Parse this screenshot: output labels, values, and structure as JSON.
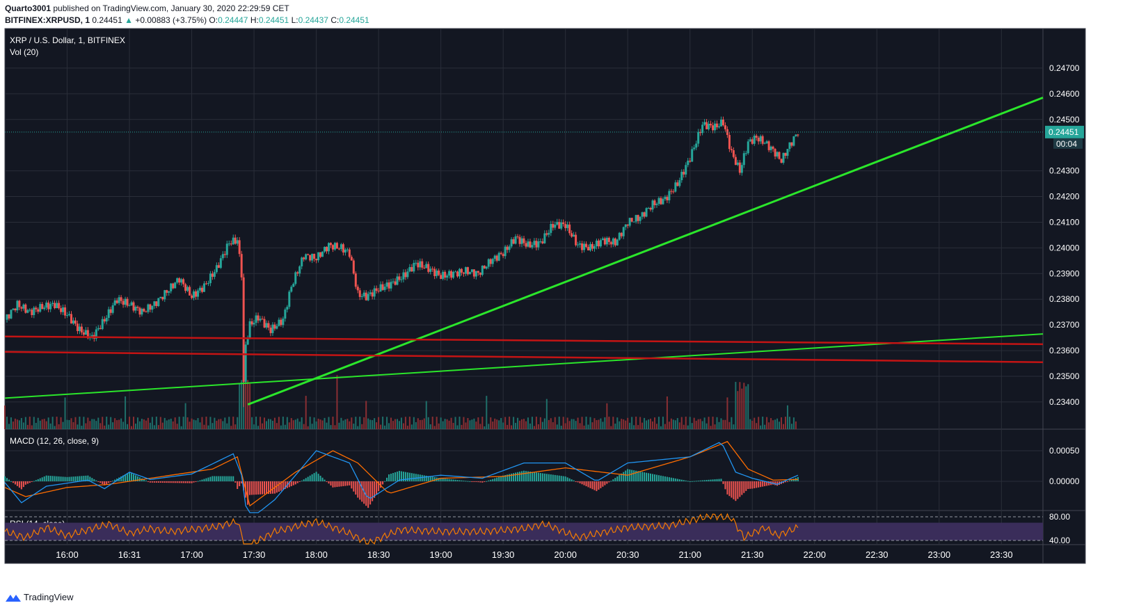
{
  "header": {
    "author": "Quarto3001",
    "published_text": "published on TradingView.com, January 30, 2020 22:29:59 CET",
    "symbol": "BITFINEX:XRPUSD, 1",
    "last": "0.24451",
    "change": "+0.00883 (+3.75%)",
    "o_label": "O:",
    "o_value": "0.24447",
    "h_label": "H:",
    "h_value": "0.24451",
    "l_label": "L:",
    "l_value": "0.24437",
    "c_label": "C:",
    "c_value": "0.24451"
  },
  "footer": {
    "brand": "TradingView"
  },
  "colors": {
    "background": "#131722",
    "grid": "#2a2e39",
    "axis_text": "#d1d4dc",
    "up": "#26a69a",
    "down": "#ef5350",
    "trend_green": "#2be62b",
    "red_line": "#c41414",
    "macd_line": "#2196f3",
    "signal_line": "#ff6d00",
    "rsi_line": "#f57c00",
    "rsi_band": "#3a2d5a",
    "price_tag": "#26a69a"
  },
  "chart_data": {
    "type": "candlestick",
    "main_title": "XRP / U.S. Dollar, 1, BITFINEX",
    "volume_label": "Vol (20)",
    "macd_label": "MACD (12, 26, close, 9)",
    "rsi_label": "RSI (14, close)",
    "price_axis_ticks": [
      "0.24700",
      "0.24600",
      "0.24500",
      "0.24300",
      "0.24200",
      "0.24100",
      "0.24000",
      "0.23900",
      "0.23800",
      "0.23700",
      "0.23600",
      "0.23500",
      "0.23400"
    ],
    "price_ylim": [
      0.2337,
      0.248
    ],
    "current_price_tag": "0.24451",
    "countdown_tag": "00:04",
    "macd_ticks": [
      "0.00050",
      "0.00000"
    ],
    "rsi_ticks": [
      "80.00",
      "40.00"
    ],
    "time_ticks": [
      "16:00",
      "16:31",
      "17:00",
      "17:30",
      "18:00",
      "18:30",
      "19:00",
      "19:30",
      "20:00",
      "20:30",
      "21:00",
      "21:30",
      "22:00",
      "22:30",
      "23:00",
      "23:30"
    ],
    "price_series": [
      [
        0,
        0.2372
      ],
      [
        6,
        0.2378
      ],
      [
        12,
        0.2375
      ],
      [
        18,
        0.2377
      ],
      [
        24,
        0.2378
      ],
      [
        30,
        0.2374
      ],
      [
        36,
        0.2368
      ],
      [
        42,
        0.2365
      ],
      [
        48,
        0.2372
      ],
      [
        54,
        0.238
      ],
      [
        60,
        0.2378
      ],
      [
        66,
        0.2375
      ],
      [
        72,
        0.2378
      ],
      [
        78,
        0.2383
      ],
      [
        84,
        0.2388
      ],
      [
        90,
        0.2381
      ],
      [
        96,
        0.2385
      ],
      [
        102,
        0.2392
      ],
      [
        108,
        0.2402
      ],
      [
        112,
        0.2403
      ],
      [
        114,
        0.239
      ],
      [
        115,
        0.2347
      ],
      [
        116,
        0.2362
      ],
      [
        118,
        0.237
      ],
      [
        122,
        0.2373
      ],
      [
        128,
        0.2368
      ],
      [
        134,
        0.2372
      ],
      [
        138,
        0.2385
      ],
      [
        144,
        0.2397
      ],
      [
        150,
        0.2396
      ],
      [
        156,
        0.2401
      ],
      [
        162,
        0.24
      ],
      [
        166,
        0.2398
      ],
      [
        170,
        0.2382
      ],
      [
        174,
        0.2381
      ],
      [
        180,
        0.2384
      ],
      [
        186,
        0.2386
      ],
      [
        192,
        0.2389
      ],
      [
        198,
        0.2394
      ],
      [
        204,
        0.2392
      ],
      [
        210,
        0.2389
      ],
      [
        216,
        0.239
      ],
      [
        222,
        0.2391
      ],
      [
        228,
        0.239
      ],
      [
        234,
        0.2395
      ],
      [
        240,
        0.2398
      ],
      [
        246,
        0.2404
      ],
      [
        252,
        0.2401
      ],
      [
        258,
        0.2402
      ],
      [
        264,
        0.2409
      ],
      [
        270,
        0.2409
      ],
      [
        276,
        0.2401
      ],
      [
        282,
        0.24
      ],
      [
        288,
        0.2403
      ],
      [
        294,
        0.2402
      ],
      [
        300,
        0.241
      ],
      [
        306,
        0.2412
      ],
      [
        312,
        0.2417
      ],
      [
        318,
        0.2419
      ],
      [
        324,
        0.2425
      ],
      [
        330,
        0.2435
      ],
      [
        336,
        0.2448
      ],
      [
        342,
        0.2447
      ],
      [
        346,
        0.2449
      ],
      [
        350,
        0.2437
      ],
      [
        354,
        0.243
      ],
      [
        358,
        0.2441
      ],
      [
        362,
        0.2443
      ],
      [
        366,
        0.2441
      ],
      [
        370,
        0.2438
      ],
      [
        374,
        0.2434
      ],
      [
        378,
        0.244
      ],
      [
        382,
        0.24451
      ]
    ],
    "macd": {
      "macd_line": [
        [
          0,
          -2e-05
        ],
        [
          8,
          -0.00035
        ],
        [
          20,
          -8e-05
        ],
        [
          40,
          2e-05
        ],
        [
          48,
          -0.00012
        ],
        [
          60,
          0.00015
        ],
        [
          70,
          3e-05
        ],
        [
          90,
          0.00012
        ],
        [
          110,
          0.00045
        ],
        [
          114,
          0.0001
        ],
        [
          117,
          -0.00065
        ],
        [
          130,
          -0.0003
        ],
        [
          150,
          0.0005
        ],
        [
          166,
          0.0003
        ],
        [
          175,
          -0.0003
        ],
        [
          190,
          2e-05
        ],
        [
          210,
          0.0001
        ],
        [
          230,
          5e-05
        ],
        [
          250,
          0.0003
        ],
        [
          270,
          0.0003
        ],
        [
          285,
          0.0
        ],
        [
          300,
          0.0003
        ],
        [
          330,
          0.0004
        ],
        [
          345,
          0.00065
        ],
        [
          352,
          0.00015
        ],
        [
          360,
          5e-05
        ],
        [
          372,
          -5e-05
        ],
        [
          382,
          0.0001
        ]
      ],
      "signal_line": [
        [
          0,
          -0.0001
        ],
        [
          10,
          -0.00025
        ],
        [
          30,
          -0.0001
        ],
        [
          50,
          -5e-05
        ],
        [
          70,
          5e-05
        ],
        [
          100,
          0.0002
        ],
        [
          112,
          0.0004
        ],
        [
          118,
          -0.0004
        ],
        [
          140,
          0.00015
        ],
        [
          158,
          0.0005
        ],
        [
          170,
          0.0003
        ],
        [
          185,
          -0.0002
        ],
        [
          210,
          5e-05
        ],
        [
          240,
          8e-05
        ],
        [
          270,
          0.00022
        ],
        [
          300,
          0.0001
        ],
        [
          330,
          0.0004
        ],
        [
          348,
          0.00065
        ],
        [
          358,
          0.0002
        ],
        [
          370,
          2e-05
        ],
        [
          382,
          3e-05
        ]
      ]
    },
    "rsi": {
      "band": [
        40,
        70
      ],
      "series": [
        [
          0,
          55
        ],
        [
          10,
          45
        ],
        [
          20,
          62
        ],
        [
          30,
          48
        ],
        [
          40,
          58
        ],
        [
          50,
          68
        ],
        [
          60,
          52
        ],
        [
          70,
          60
        ],
        [
          80,
          55
        ],
        [
          100,
          62
        ],
        [
          112,
          72
        ],
        [
          116,
          28
        ],
        [
          130,
          55
        ],
        [
          150,
          72
        ],
        [
          166,
          52
        ],
        [
          175,
          35
        ],
        [
          190,
          58
        ],
        [
          210,
          55
        ],
        [
          230,
          55
        ],
        [
          250,
          60
        ],
        [
          260,
          68
        ],
        [
          276,
          45
        ],
        [
          300,
          62
        ],
        [
          320,
          65
        ],
        [
          340,
          82
        ],
        [
          350,
          78
        ],
        [
          356,
          45
        ],
        [
          366,
          62
        ],
        [
          372,
          48
        ],
        [
          382,
          62
        ]
      ]
    }
  }
}
